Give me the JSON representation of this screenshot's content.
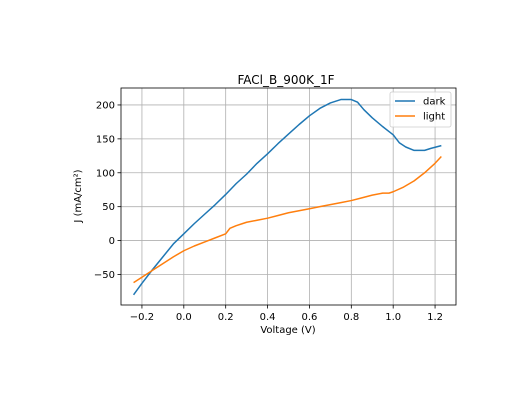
{
  "chart_data": {
    "type": "line",
    "title": "FACl_B_900K_1F",
    "xlabel": "Voltage (V)",
    "ylabel": "J (mA/cm²)",
    "xlim": [
      -0.3,
      1.3
    ],
    "ylim": [
      -95,
      225
    ],
    "xticks": [
      -0.2,
      0.0,
      0.2,
      0.4,
      0.6,
      0.8,
      1.0,
      1.2
    ],
    "xtick_labels": [
      "−0.2",
      "0.0",
      "0.2",
      "0.4",
      "0.6",
      "0.8",
      "1.0",
      "1.2"
    ],
    "yticks": [
      -50,
      0,
      50,
      100,
      150,
      200
    ],
    "ytick_labels": [
      "−50",
      "0",
      "50",
      "100",
      "150",
      "200"
    ],
    "grid": true,
    "legend_position": "top-right",
    "series": [
      {
        "name": "dark",
        "color": "#1f77b4",
        "x": [
          -0.24,
          -0.2,
          -0.15,
          -0.1,
          -0.05,
          0.0,
          0.05,
          0.1,
          0.15,
          0.2,
          0.25,
          0.3,
          0.35,
          0.4,
          0.45,
          0.5,
          0.55,
          0.6,
          0.65,
          0.7,
          0.75,
          0.8,
          0.83,
          0.86,
          0.9,
          0.95,
          1.0,
          1.03,
          1.06,
          1.1,
          1.15,
          1.18,
          1.23
        ],
        "y": [
          -80,
          -63,
          -43,
          -24,
          -5,
          10,
          25,
          39,
          53,
          68,
          84,
          98,
          114,
          128,
          143,
          157,
          171,
          184,
          195,
          203,
          208,
          208,
          204,
          193,
          181,
          168,
          156,
          144,
          138,
          133,
          133,
          136,
          140
        ]
      },
      {
        "name": "light",
        "color": "#ff7f0e",
        "x": [
          -0.24,
          -0.2,
          -0.15,
          -0.1,
          -0.05,
          0.0,
          0.05,
          0.1,
          0.15,
          0.2,
          0.22,
          0.25,
          0.28,
          0.3,
          0.35,
          0.4,
          0.45,
          0.5,
          0.55,
          0.6,
          0.65,
          0.7,
          0.75,
          0.8,
          0.85,
          0.9,
          0.95,
          0.98,
          1.0,
          1.05,
          1.1,
          1.15,
          1.2,
          1.23
        ],
        "y": [
          -62,
          -54,
          -44,
          -34,
          -24,
          -15,
          -8,
          -2,
          4,
          10,
          18,
          22,
          25,
          27,
          30,
          33,
          37,
          41,
          44,
          47,
          50,
          53,
          56,
          59,
          63,
          67,
          70,
          70,
          72,
          79,
          88,
          100,
          114,
          124
        ]
      }
    ]
  }
}
